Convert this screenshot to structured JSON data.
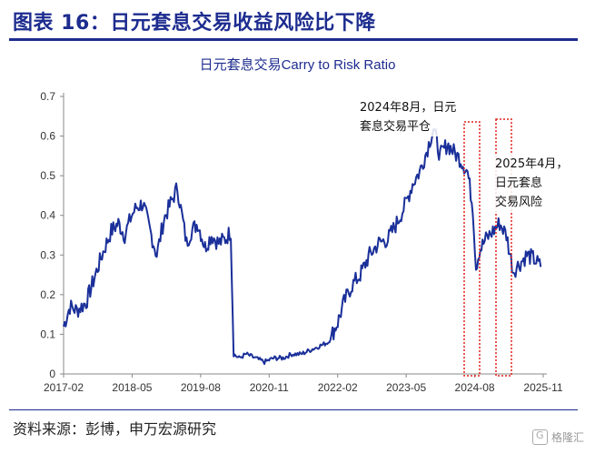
{
  "header": {
    "title": "图表 16：日元套息交易收益风险比下降"
  },
  "chart_data": {
    "type": "line",
    "title": "日元套息交易Carry to Risk Ratio",
    "xlabel": "",
    "ylabel": "",
    "ylim": [
      0,
      0.7
    ],
    "yticks": [
      "0",
      "0.1",
      "0.2",
      "0.3",
      "0.4",
      "0.5",
      "0.6",
      "0.7"
    ],
    "xticks": [
      "2017-02",
      "2018-05",
      "2019-08",
      "2020-11",
      "2022-02",
      "2023-05",
      "2024-08",
      "2025-11"
    ],
    "xlim": [
      "2017-02-01",
      "2025-11-01"
    ],
    "grid": false,
    "legend": "none",
    "line_color": "#1a2f99",
    "annotation_color": "#e0201a",
    "series": [
      {
        "x": [
          "2017-02-01",
          "2017-03-15",
          "2017-05-01",
          "2017-07-01",
          "2017-09-01",
          "2017-10-15",
          "2017-12-15",
          "2018-02-01",
          "2018-03-15",
          "2018-05-01",
          "2018-06-01",
          "2018-07-15",
          "2018-09-01",
          "2018-10-15",
          "2018-12-01",
          "2019-01-15",
          "2019-03-01",
          "2019-05-01",
          "2019-06-01",
          "2019-07-15",
          "2019-09-01",
          "2019-10-15",
          "2019-12-01",
          "2020-01-15",
          "2020-02-20",
          "2020-03-10",
          "2020-04-15",
          "2020-06-01",
          "2020-08-01",
          "2020-10-01",
          "2020-12-01",
          "2021-02-01",
          "2021-04-01",
          "2021-06-01",
          "2021-08-01",
          "2021-10-01",
          "2021-12-01",
          "2022-02-01",
          "2022-03-15",
          "2022-05-01",
          "2022-07-01",
          "2022-09-01",
          "2022-11-01",
          "2023-01-01",
          "2023-03-01",
          "2023-05-01",
          "2023-06-15",
          "2023-08-01",
          "2023-09-15",
          "2023-11-01",
          "2023-12-15",
          "2024-02-01",
          "2024-03-15",
          "2024-05-01",
          "2024-06-15",
          "2024-07-20",
          "2024-08-10",
          "2024-09-01",
          "2024-10-15",
          "2024-12-01",
          "2025-01-15",
          "2025-03-01",
          "2025-04-15",
          "2025-06-01",
          "2025-07-15",
          "2025-09-01",
          "2025-10-15"
        ],
        "y": [
          0.12,
          0.17,
          0.16,
          0.18,
          0.25,
          0.3,
          0.36,
          0.38,
          0.35,
          0.4,
          0.42,
          0.43,
          0.36,
          0.3,
          0.39,
          0.43,
          0.47,
          0.33,
          0.36,
          0.38,
          0.32,
          0.35,
          0.33,
          0.34,
          0.36,
          0.05,
          0.04,
          0.05,
          0.04,
          0.03,
          0.04,
          0.04,
          0.05,
          0.05,
          0.06,
          0.07,
          0.08,
          0.13,
          0.18,
          0.22,
          0.25,
          0.3,
          0.33,
          0.34,
          0.38,
          0.43,
          0.48,
          0.51,
          0.56,
          0.62,
          0.55,
          0.58,
          0.56,
          0.54,
          0.51,
          0.42,
          0.27,
          0.31,
          0.34,
          0.36,
          0.38,
          0.35,
          0.26,
          0.28,
          0.3,
          0.29,
          0.27
        ]
      }
    ],
    "annotations": [
      {
        "lines": [
          "2024年8月，日元",
          "套息交易平仓"
        ]
      },
      {
        "lines": [
          "2025年4月，",
          "日元套息",
          "交易风险"
        ]
      }
    ]
  },
  "footer": {
    "source": "资料来源：彭博，申万宏源研究"
  },
  "watermark": {
    "text": "格隆汇"
  }
}
